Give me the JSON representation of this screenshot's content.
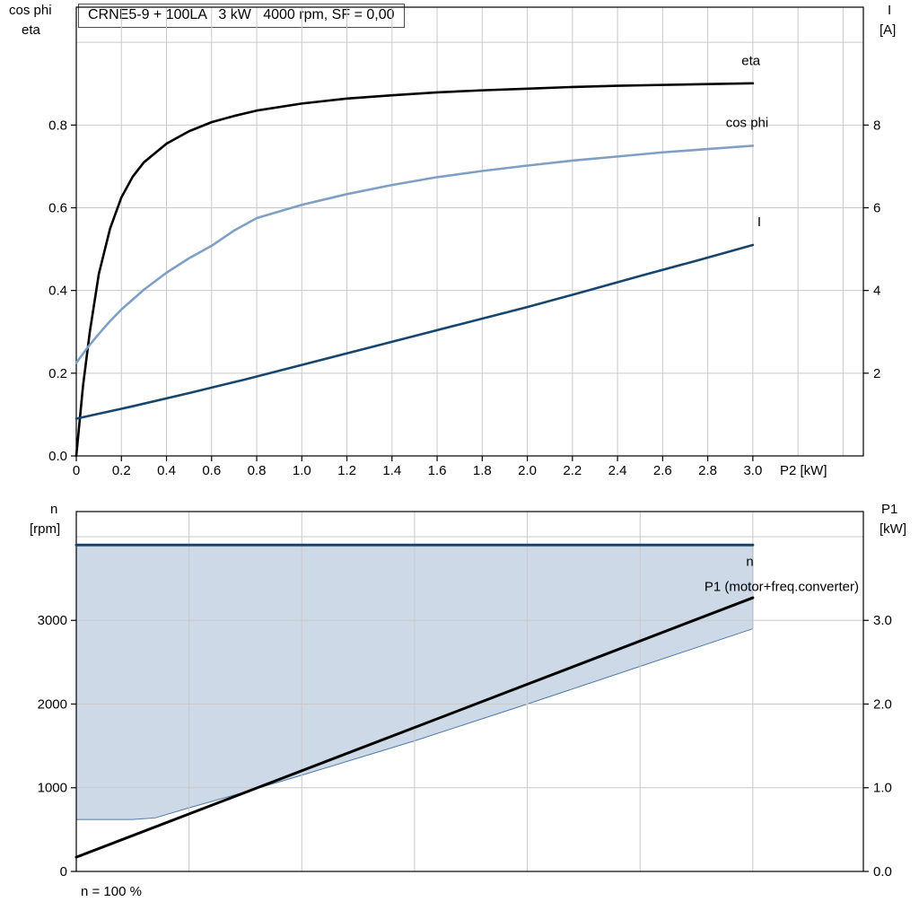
{
  "title": "CRNE5-9 + 100LA   3 kW   4000 rpm, SF = 0,00",
  "labels": {
    "top_left_1": "cos phi",
    "top_left_2": "eta",
    "top_right_1": "I",
    "top_right_2": "[A]",
    "bottom_left_1": "n",
    "bottom_left_2": "[rpm]",
    "bottom_right_1": "P1",
    "bottom_right_2": "[kW]",
    "footnote": "n = 100 %"
  },
  "colors": {
    "eta": "#000000",
    "cos_phi": "#7f9fc4",
    "current": "#17456e",
    "speed_line": "#17456e",
    "p1_line": "#000000",
    "area_fill": "#cdd9e7",
    "area_stroke": "#4f7aa8",
    "grid": "#c9c9c9",
    "frame": "#000000"
  },
  "chart_data": [
    {
      "type": "line",
      "title": "CRNE5-9 + 100LA   3 kW   4000 rpm, SF = 0,00",
      "xlabel": "P2 [kW]",
      "ylabel_left": "cos phi / eta",
      "ylabel_right": "I [A]",
      "xlim": [
        0,
        3.49
      ],
      "ylim_left": [
        0,
        1.085
      ],
      "ylim_right": [
        0,
        10.85
      ],
      "xticks": {
        "values": [
          0,
          0.2,
          0.4,
          0.6,
          0.8,
          1.0,
          1.2,
          1.4,
          1.6,
          1.8,
          2.0,
          2.2,
          2.4,
          2.6,
          2.8,
          3.0
        ],
        "labels": [
          "0",
          "0.2",
          "0.4",
          "0.6",
          "0.8",
          "1.0",
          "1.2",
          "1.4",
          "1.6",
          "1.8",
          "2.0",
          "2.2",
          "2.4",
          "2.6",
          "2.8",
          "3.0"
        ]
      },
      "yticks_left": {
        "values": [
          0,
          0.2,
          0.4,
          0.6,
          0.8
        ],
        "labels": [
          "0.0",
          "0.2",
          "0.4",
          "0.6",
          "0.8"
        ]
      },
      "yticks_right": {
        "values": [
          2,
          4,
          6,
          8
        ],
        "labels": [
          "2",
          "4",
          "6",
          "8"
        ]
      },
      "grid_x": [
        0.2,
        0.4,
        0.6,
        0.8,
        1.0,
        1.2,
        1.4,
        1.6,
        1.8,
        2.0,
        2.2,
        2.4,
        2.6,
        2.8,
        3.0,
        3.2,
        3.4
      ],
      "grid_y_left": [
        0.2,
        0.4,
        0.6,
        0.8,
        1.0
      ],
      "series": [
        {
          "name": "eta",
          "axis": "left",
          "color": "#000000",
          "width": 2.6,
          "x": [
            0,
            0.03,
            0.06,
            0.1,
            0.15,
            0.2,
            0.25,
            0.3,
            0.4,
            0.5,
            0.6,
            0.7,
            0.8,
            1.0,
            1.2,
            1.4,
            1.6,
            1.8,
            2.0,
            2.2,
            2.4,
            2.6,
            2.8,
            3.0
          ],
          "y": [
            0,
            0.17,
            0.3,
            0.44,
            0.55,
            0.625,
            0.675,
            0.71,
            0.755,
            0.785,
            0.807,
            0.822,
            0.835,
            0.852,
            0.864,
            0.872,
            0.879,
            0.884,
            0.888,
            0.892,
            0.895,
            0.897,
            0.899,
            0.901
          ]
        },
        {
          "name": "cos phi",
          "axis": "left",
          "color": "#7f9fc4",
          "width": 2.6,
          "x": [
            0,
            0.05,
            0.1,
            0.15,
            0.2,
            0.3,
            0.4,
            0.5,
            0.6,
            0.7,
            0.8,
            1.0,
            1.2,
            1.4,
            1.6,
            1.8,
            2.0,
            2.2,
            2.4,
            2.6,
            2.8,
            3.0
          ],
          "y": [
            0.225,
            0.262,
            0.295,
            0.326,
            0.354,
            0.402,
            0.443,
            0.478,
            0.508,
            0.545,
            0.575,
            0.607,
            0.633,
            0.655,
            0.674,
            0.689,
            0.702,
            0.714,
            0.724,
            0.734,
            0.742,
            0.75
          ]
        },
        {
          "name": "I",
          "axis": "right",
          "color": "#17456e",
          "width": 2.6,
          "x": [
            0,
            0.25,
            0.5,
            0.75,
            1.0,
            1.25,
            1.5,
            1.75,
            2.0,
            2.25,
            2.5,
            2.75,
            3.0
          ],
          "y": [
            0.9,
            1.2,
            1.52,
            1.85,
            2.2,
            2.55,
            2.9,
            3.25,
            3.6,
            3.97,
            4.35,
            4.72,
            5.1
          ]
        }
      ],
      "annotations": [
        {
          "text": "eta",
          "axis": "left",
          "x": 2.95,
          "y": 0.945,
          "color": "#000000",
          "anchor": "start"
        },
        {
          "text": "cos phi",
          "axis": "left",
          "x": 2.88,
          "y": 0.795,
          "color": "#7f9fc4",
          "anchor": "start"
        },
        {
          "text": "I",
          "axis": "left",
          "x": 3.02,
          "y": 0.555,
          "color": "#17456e",
          "anchor": "start"
        }
      ]
    },
    {
      "type": "line-area",
      "title": "",
      "xlabel": "",
      "ylabel_left": "n [rpm]",
      "ylabel_right": "P1 [kW]",
      "xlim": [
        0,
        3.49
      ],
      "ylim_left": [
        0,
        4300
      ],
      "ylim_right": [
        0,
        4.3
      ],
      "xticks": {
        "values": [],
        "labels": []
      },
      "yticks_left": {
        "values": [
          0,
          1000,
          2000,
          3000
        ],
        "labels": [
          "0",
          "1000",
          "2000",
          "3000"
        ]
      },
      "yticks_right": {
        "values": [
          0,
          1,
          2,
          3
        ],
        "labels": [
          "0.0",
          "1.0",
          "2.0",
          "3.0"
        ]
      },
      "grid_x": [
        0.5,
        1.0,
        1.5,
        2.0,
        2.5,
        3.0
      ],
      "grid_y_left": [
        1000,
        2000,
        3000,
        4000
      ],
      "area": {
        "name": "speed-operating-range",
        "fill": "#cdd9e7",
        "stroke": "#4f7aa8",
        "stroke_width": 1,
        "upper": 3900,
        "x": [
          0,
          0.25,
          0.35,
          0.5,
          0.75,
          1.0,
          1.25,
          1.5,
          1.75,
          2.0,
          2.25,
          2.5,
          2.75,
          3.0
        ],
        "lower": [
          620,
          620,
          640,
          760,
          950,
          1150,
          1355,
          1560,
          1780,
          2000,
          2225,
          2450,
          2675,
          2900
        ]
      },
      "series": [
        {
          "name": "n",
          "axis": "left",
          "color": "#17456e",
          "width": 3,
          "x": [
            0,
            3.0
          ],
          "y": [
            3900,
            3900
          ]
        },
        {
          "name": "P1 (motor+freq.converter)",
          "axis": "right",
          "color": "#000000",
          "width": 3,
          "x": [
            0,
            3.0
          ],
          "y": [
            0.17,
            3.27
          ]
        }
      ],
      "annotations": [
        {
          "text": "n",
          "axis": "left",
          "x": 2.97,
          "y": 3650,
          "color": "#2e6da4",
          "anchor": "start"
        },
        {
          "text": "P1 (motor+freq.converter)",
          "axis": "right",
          "x": 3.47,
          "y": 3.35,
          "color": "#000000",
          "anchor": "end"
        }
      ]
    }
  ]
}
